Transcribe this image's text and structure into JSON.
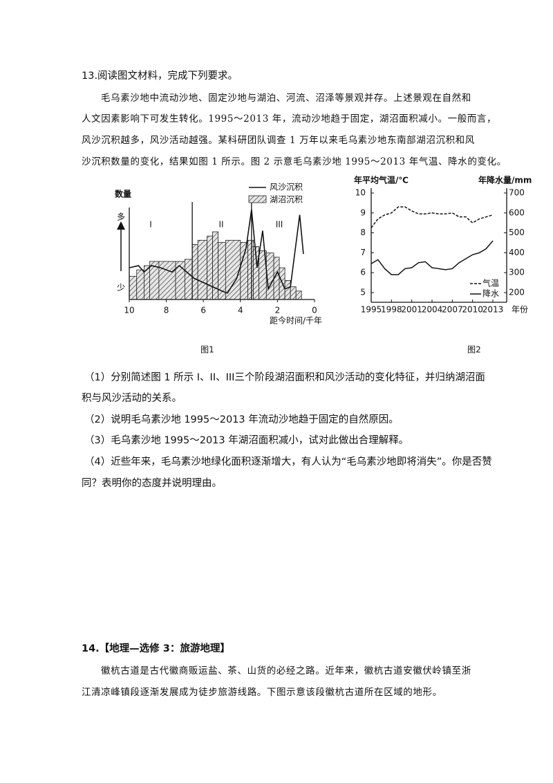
{
  "q13": {
    "title": "13.阅读图文材料，完成下列要求。",
    "passage": [
      "毛乌素沙地中流动沙地、固定沙地与湖泊、河流、沼泽等景观并存。上述景观在自然和",
      "人文因素影响下可发生转化。1995～2013 年，流动沙地趋于固定，湖沼面积减小。一般而言，",
      "风沙沉积越多，风沙活动越强。某科研团队调查 1 万年以来毛乌素沙地东南部湖沼沉积和风",
      "沙沉积数量的变化，结果如图 1 所示。图 2 示意毛乌素沙地 1995～2013 年气温、降水的变化。"
    ],
    "figure1": {
      "type": "line",
      "caption": "图1",
      "y_label": "数量",
      "y_high": "多",
      "y_low": "少",
      "x_label": "距今时间/千年",
      "xlim": [
        10,
        0
      ],
      "xticks": [
        10,
        8,
        6,
        4,
        2,
        0
      ],
      "ylim": [
        0,
        10
      ],
      "stages": [
        "I",
        "II",
        "III"
      ],
      "stage_dividers": [
        6.6,
        3.4
      ],
      "lake": {
        "name": "湖沼沉积",
        "bins": [
          10,
          9.6,
          9.2,
          8.9,
          8.4,
          7.5,
          7.0,
          6.6,
          6.3,
          5.8,
          5.5,
          5.2,
          4.8,
          4.0,
          3.6,
          3.3,
          3.0,
          2.6,
          2.2,
          1.9,
          1.6,
          1.3,
          1.0,
          0.7
        ],
        "values": [
          2.2,
          2.8,
          3.2,
          3.6,
          3.6,
          3.6,
          3.8,
          5.2,
          5.6,
          6.0,
          6.4,
          5.4,
          5.6,
          5.4,
          5.6,
          5.0,
          4.6,
          4.4,
          4.0,
          3.0,
          1.8,
          1.2,
          0.8
        ]
      },
      "wind": {
        "name": "风沙沉积",
        "x": [
          10,
          9.5,
          9.2,
          8.8,
          8.3,
          7.7,
          7.3,
          6.9,
          6.5,
          6.0,
          5.5,
          5.0,
          4.7,
          4.2,
          3.7,
          3.4,
          3.1,
          2.8,
          2.5,
          2.0,
          1.6,
          1.3,
          0.8,
          0.6
        ],
        "values": [
          3.0,
          3.2,
          2.6,
          3.2,
          3.0,
          2.6,
          3.2,
          2.6,
          2.0,
          1.6,
          1.2,
          0.8,
          0.6,
          2.0,
          4.8,
          8.5,
          3.0,
          6.5,
          1.0,
          2.6,
          1.0,
          1.2,
          8.0,
          4.3
        ]
      }
    },
    "figure2": {
      "type": "line",
      "caption": "图2",
      "y_label": "年平均气温/℃",
      "y2_label": "年降水量/mm",
      "x_label": "年份",
      "x": [
        1995,
        1996,
        1997,
        1998,
        1999,
        2000,
        2001,
        2002,
        2003,
        2004,
        2005,
        2006,
        2007,
        2008,
        2009,
        2010,
        2011,
        2012,
        2013
      ],
      "xlim": [
        1995,
        2013
      ],
      "xticks": [
        1995,
        1998,
        2001,
        2004,
        2007,
        2010,
        2013
      ],
      "ylim": [
        5,
        10
      ],
      "yticks": [
        5,
        6,
        7,
        8,
        9,
        10
      ],
      "y2lim": [
        200,
        700
      ],
      "y2ticks": [
        200,
        300,
        400,
        500,
        600,
        700
      ],
      "series": [
        {
          "name": "气温",
          "dash": true,
          "values": [
            8.25,
            8.7,
            8.9,
            9.0,
            9.3,
            9.3,
            9.1,
            8.95,
            8.95,
            9.0,
            8.95,
            8.95,
            9.0,
            8.8,
            8.8,
            8.5,
            8.7,
            8.8,
            8.9
          ]
        },
        {
          "name": "降水",
          "axis": "y2",
          "dash": false,
          "values": [
            345,
            365,
            320,
            290,
            290,
            320,
            325,
            350,
            355,
            325,
            320,
            315,
            320,
            350,
            370,
            390,
            400,
            420,
            460
          ]
        }
      ]
    },
    "questions": [
      "（1）分别简述图 1 所示 I、II、III三个阶段湖沼面积和风沙活动的变化特征，并归纳湖沼面",
      "积与风沙活动的关系。",
      "（2）说明毛乌素沙地 1995～2013 年流动沙地趋于固定的自然原因。",
      "（3）毛乌素沙地 1995～2013 年湖沼面积减小，试对此做出合理解释。",
      "（4）近些年来，毛乌素沙地绿化面积逐渐增大，有人认为“毛乌素沙地即将消失”。你是否赞",
      "同？表明你的态度并说明理由。"
    ]
  },
  "q14": {
    "title": "14.【地理—选修 3：旅游地理】",
    "passage": [
      "徽杭古道是古代徽商贩运盐、茶、山货的必经之路。近年来，徽杭古道安徽伏岭镇至浙",
      "江清凉峰镇段逐渐发展成为徒步旅游线路。下图示意该段徽杭古道所在区域的地形。"
    ]
  }
}
